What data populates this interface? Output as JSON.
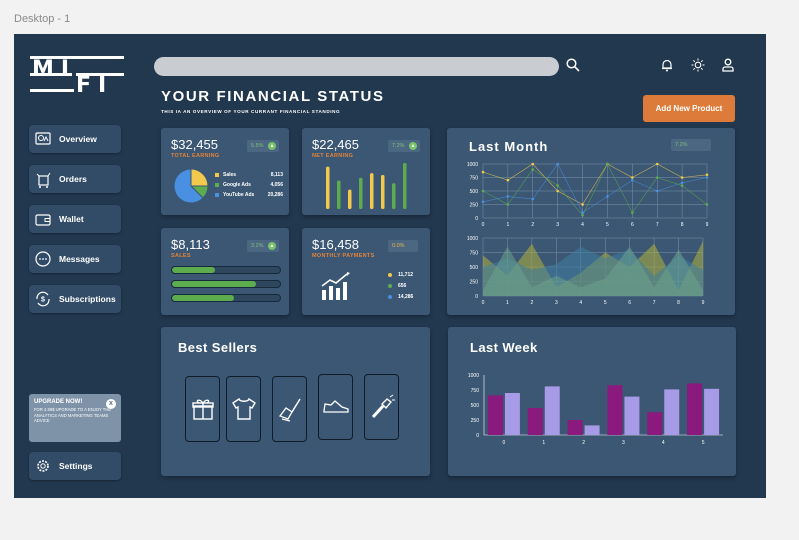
{
  "frame_label": "Desktop - 1",
  "logo": {
    "line1": "MI",
    "line2": "FI"
  },
  "search": {
    "placeholder": ""
  },
  "header": {
    "title": "YOUR FINANCIAL STATUS",
    "subtitle": "THIS IA AN OVERVIEW OF YOUR CURRANT FINANCIAL STANDING",
    "add_button": "Add New Product"
  },
  "sidebar": {
    "items": [
      {
        "label": "Overview",
        "icon": "overview-icon"
      },
      {
        "label": "Orders",
        "icon": "orders-icon"
      },
      {
        "label": "Wallet",
        "icon": "wallet-icon"
      },
      {
        "label": "Messages",
        "icon": "messages-icon"
      },
      {
        "label": "Subscriptions",
        "icon": "subscriptions-icon"
      }
    ],
    "upgrade": {
      "title": "UPGRADE NOW!",
      "text": "FOR 4.99$ UPGRADE TO A ENJOY THE ANALYTICS AND MARKETING TEAMS ADVICE",
      "close": "x"
    },
    "settings_label": "Settings"
  },
  "cards": {
    "total_earning": {
      "amount": "$32,455",
      "label": "TOTAL EARNING",
      "badge": "5.5%",
      "legend": [
        {
          "name": "Sales",
          "value": "8,113",
          "color": "#f2c94c"
        },
        {
          "name": "Google Ads",
          "value": "4,056",
          "color": "#5dad4e"
        },
        {
          "name": "YouTube Ads",
          "value": "20,286",
          "color": "#4a90e2"
        }
      ],
      "pie_values": [
        8113,
        4056,
        20286
      ]
    },
    "net_earning": {
      "amount": "$22,465",
      "label": "NET EARNING",
      "badge": "7.2%",
      "bars": [
        {
          "value": 0.92,
          "color": "#f2c94c"
        },
        {
          "value": 0.62,
          "color": "#5dad4e"
        },
        {
          "value": 0.42,
          "color": "#f2c94c"
        },
        {
          "value": 0.68,
          "color": "#5dad4e"
        },
        {
          "value": 0.78,
          "color": "#f2c94c"
        },
        {
          "value": 0.74,
          "color": "#f2c94c"
        },
        {
          "value": 0.56,
          "color": "#5dad4e"
        },
        {
          "value": 1.0,
          "color": "#5dad4e"
        }
      ]
    },
    "sales": {
      "amount": "$8,113",
      "label": "SALES",
      "badge": "3.2%",
      "progress": [
        0.4,
        0.78,
        0.57
      ]
    },
    "monthly_payments": {
      "amount": "$16,458",
      "label": "MONTHLY PAYMENTS",
      "badge": "0.0%",
      "legend": [
        {
          "value": "11,712",
          "color": "#f2c94c"
        },
        {
          "value": "656",
          "color": "#5dad4e"
        },
        {
          "value": "14,286",
          "color": "#4a90e2"
        }
      ]
    },
    "last_month": {
      "title": "Last Month",
      "badge": "7.2%"
    },
    "best_sellers": {
      "title": "Best Sellers",
      "products": [
        "gift-icon",
        "tshirt-icon",
        "shoe-care-icon",
        "sneaker-icon",
        "flashlight-icon"
      ]
    },
    "last_week": {
      "title": "Last Week"
    }
  },
  "colors": {
    "background": "#22384f",
    "card": "#3b5773",
    "accent": "#dd7b3a",
    "green": "#5dad4e",
    "yellow": "#f2c94c",
    "blue": "#4a90e2",
    "purple": "#8b1a7e",
    "lavender": "#a79ae6"
  },
  "chart_data": [
    {
      "type": "line",
      "x": [
        0,
        1,
        2,
        3,
        4,
        5,
        6,
        7,
        8,
        9
      ],
      "ylim": [
        0,
        1000
      ],
      "yticks": [
        0,
        250,
        500,
        750,
        1000
      ],
      "series": [
        {
          "values": [
            850,
            700,
            1000,
            500,
            250,
            1000,
            750,
            1000,
            750,
            800
          ],
          "color": "#f2c94c"
        },
        {
          "values": [
            500,
            250,
            900,
            600,
            50,
            1000,
            100,
            750,
            600,
            250
          ],
          "color": "#5dad4e"
        },
        {
          "values": [
            300,
            400,
            350,
            1000,
            100,
            400,
            700,
            500,
            650,
            750
          ],
          "color": "#4a90e2"
        }
      ]
    },
    {
      "type": "area",
      "x": [
        0,
        1,
        2,
        3,
        4,
        5,
        6,
        7,
        8,
        9
      ],
      "ylim": [
        0,
        1000
      ],
      "yticks": [
        0,
        250,
        500,
        750,
        1000
      ],
      "series": [
        {
          "values": [
            700,
            350,
            900,
            150,
            400,
            750,
            500,
            900,
            100,
            950
          ],
          "color": "#b3b23b"
        },
        {
          "values": [
            500,
            650,
            450,
            550,
            850,
            650,
            800,
            350,
            700,
            450
          ],
          "color": "#3f7ea0"
        },
        {
          "values": [
            100,
            850,
            150,
            350,
            150,
            300,
            850,
            150,
            800,
            100
          ],
          "color": "#6ba38a"
        }
      ]
    },
    {
      "type": "bar",
      "categories": [
        "0",
        "1",
        "2",
        "3",
        "4",
        "5"
      ],
      "ylim": [
        0,
        1000
      ],
      "yticks": [
        0,
        250,
        500,
        750,
        1000
      ],
      "series": [
        {
          "values": [
            660,
            450,
            250,
            830,
            380,
            860
          ],
          "color": "#8b1a7e"
        },
        {
          "values": [
            700,
            810,
            160,
            640,
            760,
            770
          ],
          "color": "#a79ae6"
        }
      ]
    }
  ]
}
